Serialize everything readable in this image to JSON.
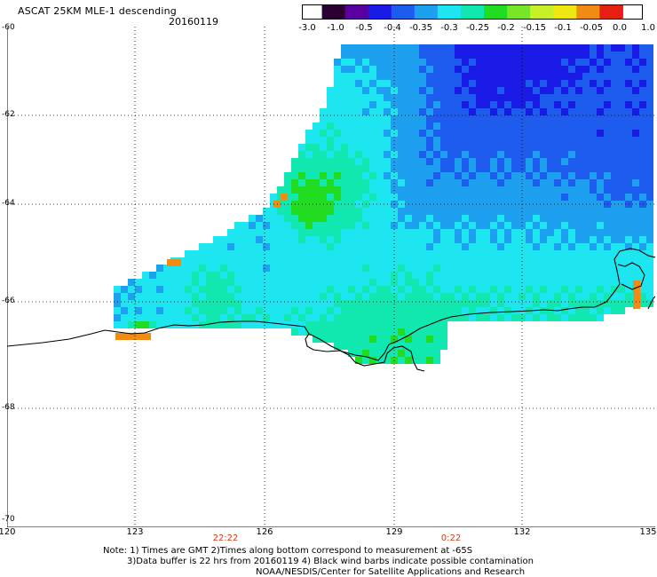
{
  "header": {
    "title": "ASCAT 25KM MLE-1 descending",
    "date": "20160119"
  },
  "colorbar": {
    "labels": [
      "-3.0",
      "-1.0",
      "-0.5",
      "-0.4",
      "-0.35",
      "-0.3",
      "-0.25",
      "-0.2",
      "-0.15",
      "-0.1",
      "-0.05",
      "0.0",
      "1.0"
    ],
    "colors": [
      "#2a0033",
      "#5a00a0",
      "#1a1ae6",
      "#1e5cf0",
      "#1ea0f0",
      "#1ee6f0",
      "#10e8b0",
      "#22dc22",
      "#78e628",
      "#c8f028",
      "#f0e614",
      "#f08c14",
      "#e61e14"
    ]
  },
  "axes": {
    "lat_labels": [
      "-60",
      "-62",
      "-64",
      "-66",
      "-68",
      "-70"
    ],
    "lon_labels": [
      "120",
      "123",
      "126",
      "129",
      "132",
      "135"
    ],
    "time_labels": [
      "22:22",
      "0:22"
    ]
  },
  "footer": {
    "line1": "Note: 1) Times are GMT 2)Times along bottom correspond to measurement at -65S",
    "line2": "3)Data buffer is 22 hrs from 20160119 4) Black wind barbs indicate possible contamination",
    "line3": "NOAA/NESDIS/Center for Satellite Applications and Research"
  },
  "map": {
    "coastline_color": "#000000",
    "grid_color": "#000000"
  }
}
